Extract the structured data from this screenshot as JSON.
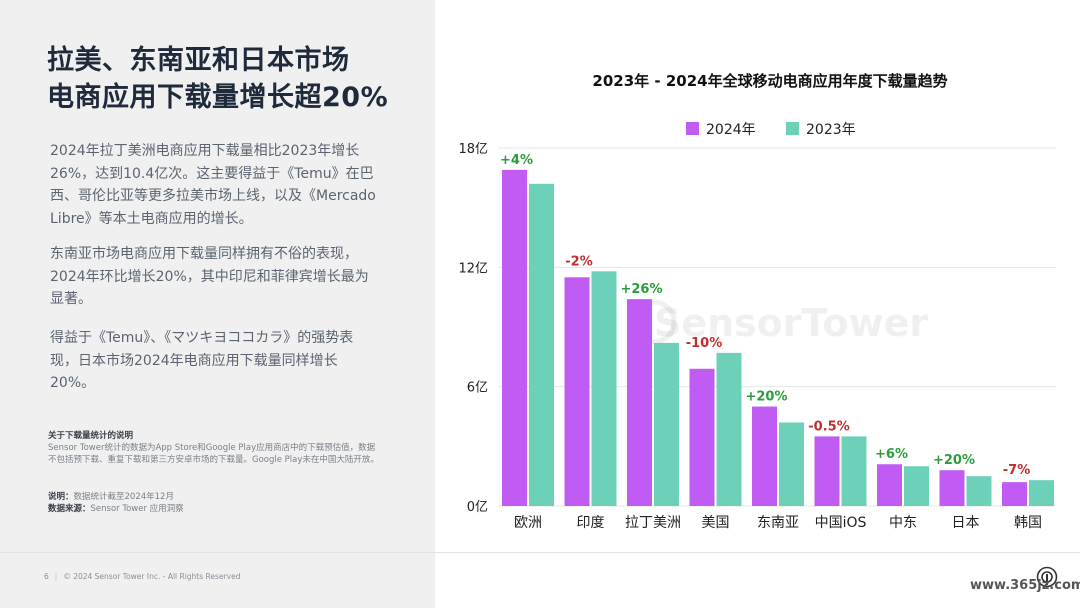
{
  "left": {
    "title_line1": "拉美、东南亚和日本市场",
    "title_line2": "电商应用下载量增长超20%",
    "para1": "2024年拉丁美洲电商应用下载量相比2023年增长26%，达到10.4亿次。这主要得益于《Temu》在巴西、哥伦比亚等更多拉美市场上线，以及《Mercado Libre》等本土电商应用的增长。",
    "para2": "东南亚市场电商应用下载量同样拥有不俗的表现，2024年环比增长20%，其中印尼和菲律宾增长最为显著。",
    "para3": "得益于《Temu》、《マツキヨココカラ》的强势表现，日本市场2024年电商应用下载量同样增长20%。",
    "note_title": "关于下载量统计的说明",
    "note_body": "Sensor Tower统计的数据为App Store和Google Play应用商店中的下载预估值，数据不包括预下载、重复下载和第三方安卓市场的下载量。Google Play未在中国大陆开放。",
    "note_desc_label": "说明：",
    "note_desc": "数据统计截至2024年12月",
    "note_source_label": "数据来源：",
    "note_source": "Sensor Tower 应用洞察"
  },
  "footer": {
    "page_number": "6",
    "copyright": "© 2024 Sensor Tower Inc. - All Rights Reserved"
  },
  "watermark": "www.365jz.com",
  "colors": {
    "series_2024": "#c05cf3",
    "series_2023": "#6dd1b9",
    "positive": "#2a9d3c",
    "negative": "#c0302e",
    "axis_text": "#222222"
  },
  "chart_data": {
    "type": "bar",
    "title": "2023年 - 2024年全球移动电商应用年度下载量趋势",
    "categories": [
      "欧洲",
      "印度",
      "拉丁美洲",
      "美国",
      "东南亚",
      "中国iOS",
      "中东",
      "日本",
      "韩国"
    ],
    "series": [
      {
        "name": "2024年",
        "values": [
          16.9,
          11.5,
          10.4,
          6.9,
          5.0,
          3.5,
          2.1,
          1.8,
          1.2
        ]
      },
      {
        "name": "2023年",
        "values": [
          16.2,
          11.8,
          8.2,
          7.7,
          4.2,
          3.5,
          2.0,
          1.5,
          1.3
        ]
      }
    ],
    "change_labels": [
      "+4%",
      "-2%",
      "+26%",
      "-10%",
      "+20%",
      "-0.5%",
      "+6%",
      "+20%",
      "-7%"
    ],
    "y_ticks": [
      "0亿",
      "6亿",
      "12亿",
      "18亿"
    ],
    "y_tick_values": [
      0,
      6,
      12,
      18
    ],
    "ylim": [
      0,
      18
    ],
    "legend_position": "top",
    "grid": true,
    "unit": "亿"
  }
}
